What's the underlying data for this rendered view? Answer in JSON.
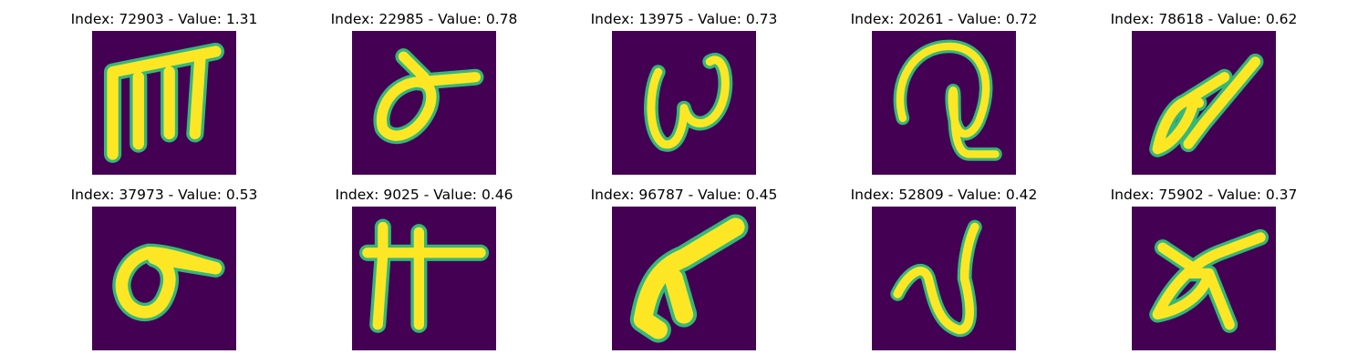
{
  "panels": [
    {
      "title": "Index: 72903 - Value: 1.31",
      "glyph": "glyph-m-icon"
    },
    {
      "title": "Index: 22985 - Value: 0.78",
      "glyph": "glyph-sigma-icon"
    },
    {
      "title": "Index: 13975 - Value: 0.73",
      "glyph": "glyph-omega-icon"
    },
    {
      "title": "Index: 20261 - Value: 0.72",
      "glyph": "glyph-q-icon"
    },
    {
      "title": "Index: 78618 - Value: 0.62",
      "glyph": "glyph-alpha-icon"
    },
    {
      "title": "Index: 37973 - Value: 0.53",
      "glyph": "glyph-sigma-icon"
    },
    {
      "title": "Index: 9025 - Value: 0.46",
      "glyph": "glyph-pi-icon"
    },
    {
      "title": "Index: 96787 - Value: 0.45",
      "glyph": "glyph-lambda-icon"
    },
    {
      "title": "Index: 52809 - Value: 0.42",
      "glyph": "glyph-nu-icon"
    },
    {
      "title": "Index: 75902 - Value: 0.37",
      "glyph": "glyph-alpha-icon"
    }
  ],
  "colors": {
    "background": "#440154",
    "stroke": "#fde725",
    "edge": "#35b779"
  }
}
